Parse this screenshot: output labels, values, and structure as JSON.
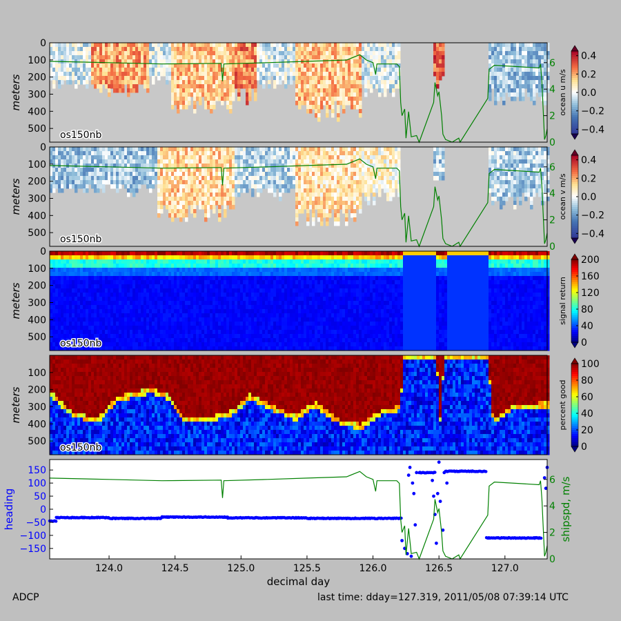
{
  "footer": {
    "left": "ADCP",
    "right": "last time: dday=127.319,  2011/05/08 07:39:14 UTC"
  },
  "colors": {
    "figure_bg": "#bfbfbf",
    "nodata": "#c8c8c8",
    "shipspd": "#008000",
    "heading": "#0000ff"
  },
  "chart_data": [
    {
      "type": "heatmap",
      "panel": "ocean-u",
      "ylabel": "meters",
      "annotation": "os150nb",
      "y_inverted": true,
      "ylim": [
        0,
        580
      ],
      "yticks": [
        0,
        100,
        200,
        300,
        400,
        500
      ],
      "colormap": "bwr-diverging",
      "colorbar": {
        "label": "ocean u m/s",
        "range": [
          -0.45,
          0.45
        ],
        "ticks": [
          "0.4",
          "0.2",
          "0.0",
          "−0.2",
          "−0.4"
        ]
      },
      "right_axis": {
        "label": "",
        "range": [
          0,
          7.5
        ],
        "ticks": [
          "6",
          "4",
          "2",
          "0"
        ],
        "series": "shipspd"
      },
      "regions": [
        {
          "x": [
            123.55,
            123.85
          ],
          "depth_max": 230,
          "value": -0.05
        },
        {
          "x": [
            123.85,
            124.3
          ],
          "depth_max": 260,
          "value": 0.2
        },
        {
          "x": [
            124.3,
            124.45
          ],
          "depth_max": 200,
          "value": -0.05
        },
        {
          "x": [
            124.45,
            124.95
          ],
          "depth_max": 360,
          "value": 0.15
        },
        {
          "x": [
            124.95,
            125.1
          ],
          "depth_max": 300,
          "value": 0.25
        },
        {
          "x": [
            125.1,
            125.4
          ],
          "depth_max": 220,
          "value": -0.05
        },
        {
          "x": [
            125.4,
            125.9
          ],
          "depth_max": 390,
          "value": 0.15
        },
        {
          "x": [
            125.9,
            126.2
          ],
          "depth_max": 280,
          "value": -0.05
        },
        {
          "x": [
            126.2,
            126.45
          ],
          "depth_max": 0,
          "value": 0
        },
        {
          "x": [
            126.45,
            126.52
          ],
          "depth_max": 220,
          "value": 0.3
        },
        {
          "x": [
            126.52,
            126.86
          ],
          "depth_max": 0,
          "value": 0
        },
        {
          "x": [
            126.86,
            127.32
          ],
          "depth_max": 300,
          "value": -0.12
        }
      ]
    },
    {
      "type": "heatmap",
      "panel": "ocean-v",
      "ylabel": "meters",
      "annotation": "os150nb",
      "y_inverted": true,
      "ylim": [
        0,
        580
      ],
      "yticks": [
        0,
        100,
        200,
        300,
        400,
        500
      ],
      "colormap": "bwr-diverging",
      "colorbar": {
        "label": "ocean v m/s",
        "range": [
          -0.45,
          0.45
        ],
        "ticks": [
          "0.4",
          "0.2",
          "0.0",
          "−0.2",
          "−0.4"
        ]
      },
      "right_axis": {
        "label": "",
        "range": [
          0,
          7.5
        ],
        "ticks": [
          "6",
          "4",
          "2",
          "0"
        ],
        "series": "shipspd"
      },
      "regions": [
        {
          "x": [
            123.55,
            124.35
          ],
          "depth_max": 240,
          "value": -0.12
        },
        {
          "x": [
            124.35,
            124.95
          ],
          "depth_max": 370,
          "value": 0.12
        },
        {
          "x": [
            124.95,
            125.4
          ],
          "depth_max": 260,
          "value": -0.08
        },
        {
          "x": [
            125.4,
            125.9
          ],
          "depth_max": 400,
          "value": 0.1
        },
        {
          "x": [
            125.9,
            126.2
          ],
          "depth_max": 280,
          "value": 0.05
        },
        {
          "x": [
            126.2,
            126.45
          ],
          "depth_max": 0,
          "value": 0
        },
        {
          "x": [
            126.45,
            126.52
          ],
          "depth_max": 200,
          "value": -0.1
        },
        {
          "x": [
            126.52,
            126.86
          ],
          "depth_max": 0,
          "value": 0
        },
        {
          "x": [
            126.86,
            127.32
          ],
          "depth_max": 300,
          "value": -0.1
        }
      ]
    },
    {
      "type": "heatmap",
      "panel": "signal-return",
      "ylabel": "meters",
      "annotation": "os150nb",
      "y_inverted": true,
      "ylim": [
        0,
        580
      ],
      "yticks": [
        0,
        100,
        200,
        300,
        400,
        500
      ],
      "colormap": "jet",
      "colorbar": {
        "label": "signal return",
        "range": [
          0,
          200
        ],
        "ticks": [
          "200",
          "160",
          "120",
          "80",
          "40",
          "0"
        ]
      },
      "profile": {
        "surface": 200,
        "level_30m": 150,
        "level_80m": 80,
        "level_130m": 45,
        "deep": 25
      },
      "bands": [
        {
          "x": [
            126.22,
            126.47
          ],
          "value": 35
        },
        {
          "x": [
            126.55,
            126.87
          ],
          "value": 35
        }
      ]
    },
    {
      "type": "heatmap",
      "panel": "percent-good",
      "ylabel": "meters",
      "annotation": "os150nb",
      "y_inverted": true,
      "ylim": [
        0,
        580
      ],
      "yticks": [
        100,
        200,
        300,
        400,
        500
      ],
      "colormap": "jet",
      "colorbar": {
        "label": "percent good",
        "range": [
          0,
          100
        ],
        "ticks": [
          "100",
          "80",
          "60",
          "40",
          "20",
          "0"
        ]
      },
      "good_depth": [
        {
          "x": 123.55,
          "depth": 220
        },
        {
          "x": 123.7,
          "depth": 330
        },
        {
          "x": 123.9,
          "depth": 380
        },
        {
          "x": 124.05,
          "depth": 250
        },
        {
          "x": 124.3,
          "depth": 200
        },
        {
          "x": 124.45,
          "depth": 240
        },
        {
          "x": 124.55,
          "depth": 360
        },
        {
          "x": 124.75,
          "depth": 370
        },
        {
          "x": 124.95,
          "depth": 320
        },
        {
          "x": 125.05,
          "depth": 230
        },
        {
          "x": 125.2,
          "depth": 290
        },
        {
          "x": 125.4,
          "depth": 360
        },
        {
          "x": 125.55,
          "depth": 280
        },
        {
          "x": 125.75,
          "depth": 390
        },
        {
          "x": 125.9,
          "depth": 410
        },
        {
          "x": 126.05,
          "depth": 330
        },
        {
          "x": 126.2,
          "depth": 300
        },
        {
          "x": 126.22,
          "depth": 0
        },
        {
          "x": 126.47,
          "depth": 0
        },
        {
          "x": 126.5,
          "depth": 380
        },
        {
          "x": 126.53,
          "depth": 0
        },
        {
          "x": 126.86,
          "depth": 0
        },
        {
          "x": 126.9,
          "depth": 380
        },
        {
          "x": 127.05,
          "depth": 300
        },
        {
          "x": 127.32,
          "depth": 280
        }
      ]
    },
    {
      "type": "scatter",
      "panel": "heading-shipspd",
      "xlabel": "decimal day",
      "xlim": [
        123.55,
        127.32
      ],
      "xticks": [
        "124.0",
        "124.5",
        "125.0",
        "125.5",
        "126.0",
        "126.5",
        "127.0"
      ],
      "ylabel": "heading",
      "ylim": [
        -190,
        190
      ],
      "yticks": [
        "150",
        "100",
        "50",
        "0",
        "−50",
        "−100",
        "−150"
      ],
      "right_axis": {
        "label": "shipspd, m/s",
        "range": [
          0,
          7.5
        ],
        "ticks": [
          "6",
          "4",
          "2",
          "0"
        ]
      },
      "heading": [
        {
          "x": [
            123.55,
            123.6
          ],
          "y": -45
        },
        {
          "x": [
            123.6,
            124.0
          ],
          "y": -32
        },
        {
          "x": [
            124.0,
            124.4
          ],
          "y": -35
        },
        {
          "x": [
            124.4,
            124.9
          ],
          "y": -30
        },
        {
          "x": [
            124.9,
            125.5
          ],
          "y": -33
        },
        {
          "x": [
            125.5,
            126.22
          ],
          "y": -35
        },
        {
          "x": [
            126.35,
            126.47
          ],
          "y": 140
        },
        {
          "x": [
            126.55,
            126.86
          ],
          "y": 145
        },
        {
          "x": [
            126.86,
            127.28
          ],
          "y": -110
        }
      ],
      "heading_scatter": [
        [
          126.22,
          -120
        ],
        [
          126.24,
          -150
        ],
        [
          126.26,
          -170
        ],
        [
          126.27,
          130
        ],
        [
          126.28,
          160
        ],
        [
          126.3,
          100
        ],
        [
          126.31,
          60
        ],
        [
          126.32,
          -60
        ],
        [
          126.29,
          -180
        ],
        [
          126.33,
          140
        ],
        [
          126.45,
          110
        ],
        [
          126.46,
          50
        ],
        [
          126.47,
          -20
        ],
        [
          126.48,
          -130
        ],
        [
          126.49,
          60
        ],
        [
          126.5,
          180
        ],
        [
          126.51,
          30
        ],
        [
          126.53,
          -80
        ],
        [
          126.54,
          140
        ],
        [
          126.56,
          100
        ],
        [
          127.3,
          120
        ],
        [
          127.31,
          80
        ],
        [
          127.32,
          160
        ]
      ],
      "shipspd": [
        [
          123.55,
          6.1
        ],
        [
          124.0,
          6.0
        ],
        [
          124.4,
          5.9
        ],
        [
          124.85,
          5.95
        ],
        [
          124.86,
          4.6
        ],
        [
          124.87,
          5.9
        ],
        [
          125.2,
          6.0
        ],
        [
          125.5,
          6.1
        ],
        [
          125.8,
          6.2
        ],
        [
          125.9,
          6.6
        ],
        [
          125.95,
          6.2
        ],
        [
          126.0,
          6.0
        ],
        [
          126.02,
          5.1
        ],
        [
          126.03,
          5.9
        ],
        [
          126.18,
          5.9
        ],
        [
          126.2,
          5.7
        ],
        [
          126.21,
          3.0
        ],
        [
          126.22,
          2.0
        ],
        [
          126.24,
          2.5
        ],
        [
          126.25,
          0.3
        ],
        [
          126.27,
          2.3
        ],
        [
          126.29,
          0.4
        ],
        [
          126.33,
          0.5
        ],
        [
          126.35,
          0.0
        ],
        [
          126.46,
          3.0
        ],
        [
          126.47,
          4.5
        ],
        [
          126.49,
          3.5
        ],
        [
          126.5,
          3.8
        ],
        [
          126.52,
          2.0
        ],
        [
          126.53,
          0.6
        ],
        [
          126.55,
          0.2
        ],
        [
          126.6,
          0.0
        ],
        [
          126.65,
          0.3
        ],
        [
          126.66,
          0.0
        ],
        [
          126.87,
          3.3
        ],
        [
          126.88,
          5.5
        ],
        [
          126.92,
          5.8
        ],
        [
          127.1,
          5.7
        ],
        [
          127.26,
          5.6
        ],
        [
          127.27,
          5.9
        ],
        [
          127.28,
          4.5
        ],
        [
          127.3,
          0.2
        ],
        [
          127.31,
          0.5
        ],
        [
          127.32,
          1.0
        ]
      ]
    }
  ]
}
